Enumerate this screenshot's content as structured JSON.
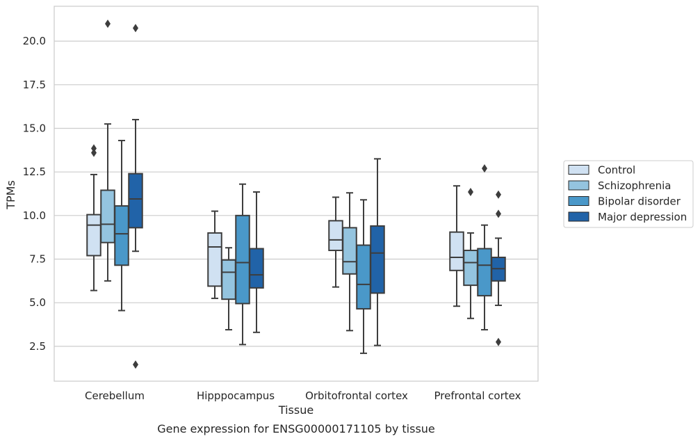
{
  "chart_data": {
    "type": "box",
    "title": "Gene expression for ENSG00000171105 by tissue",
    "xlabel": "Tissue",
    "ylabel": "TPMs",
    "ylim": [
      0.5,
      22.0
    ],
    "yticks": [
      "2.5",
      "5.0",
      "7.5",
      "10.0",
      "12.5",
      "15.0",
      "17.5",
      "20.0"
    ],
    "grid": "horizontal",
    "legend_position": "right",
    "categories": [
      "Cerebellum",
      "Hipppocampus",
      "Orbitofrontal cortex",
      "Prefrontal cortex"
    ],
    "series": [
      {
        "name": "Control",
        "color": "#d0e1f2",
        "boxes": [
          {
            "whisker_low": 5.7,
            "q1": 7.7,
            "median": 9.45,
            "q3": 10.05,
            "whisker_high": 12.35,
            "outliers": [
              13.6,
              13.85
            ]
          },
          {
            "whisker_low": 5.25,
            "q1": 5.95,
            "median": 8.2,
            "q3": 9.0,
            "whisker_high": 10.25,
            "outliers": []
          },
          {
            "whisker_low": 5.9,
            "q1": 8.0,
            "median": 8.6,
            "q3": 9.7,
            "whisker_high": 11.05,
            "outliers": []
          },
          {
            "whisker_low": 4.8,
            "q1": 6.85,
            "median": 7.6,
            "q3": 9.05,
            "whisker_high": 11.7,
            "outliers": []
          }
        ]
      },
      {
        "name": "Schizophrenia",
        "color": "#94c4df",
        "boxes": [
          {
            "whisker_low": 6.25,
            "q1": 8.45,
            "median": 9.5,
            "q3": 11.45,
            "whisker_high": 15.25,
            "outliers": [
              21.0
            ]
          },
          {
            "whisker_low": 3.45,
            "q1": 5.2,
            "median": 6.75,
            "q3": 7.45,
            "whisker_high": 8.15,
            "outliers": []
          },
          {
            "whisker_low": 3.4,
            "q1": 6.65,
            "median": 7.35,
            "q3": 9.3,
            "whisker_high": 11.3,
            "outliers": []
          },
          {
            "whisker_low": 4.1,
            "q1": 6.0,
            "median": 7.3,
            "q3": 8.0,
            "whisker_high": 9.0,
            "outliers": [
              11.35
            ]
          }
        ]
      },
      {
        "name": "Bipolar disorder",
        "color": "#4a98c9",
        "boxes": [
          {
            "whisker_low": 4.55,
            "q1": 7.15,
            "median": 8.95,
            "q3": 10.55,
            "whisker_high": 14.3,
            "outliers": []
          },
          {
            "whisker_low": 2.6,
            "q1": 4.95,
            "median": 7.3,
            "q3": 10.0,
            "whisker_high": 11.8,
            "outliers": []
          },
          {
            "whisker_low": 2.1,
            "q1": 4.65,
            "median": 6.05,
            "q3": 8.3,
            "whisker_high": 10.9,
            "outliers": []
          },
          {
            "whisker_low": 3.45,
            "q1": 5.4,
            "median": 7.15,
            "q3": 8.1,
            "whisker_high": 9.45,
            "outliers": [
              12.7
            ]
          }
        ]
      },
      {
        "name": "Major depression",
        "color": "#2163a8",
        "boxes": [
          {
            "whisker_low": 7.95,
            "q1": 9.3,
            "median": 10.95,
            "q3": 12.4,
            "whisker_high": 15.5,
            "outliers": [
              20.75,
              1.45
            ]
          },
          {
            "whisker_low": 3.3,
            "q1": 5.85,
            "median": 6.6,
            "q3": 8.1,
            "whisker_high": 11.35,
            "outliers": []
          },
          {
            "whisker_low": 2.55,
            "q1": 5.55,
            "median": 7.85,
            "q3": 9.4,
            "whisker_high": 13.25,
            "outliers": []
          },
          {
            "whisker_low": 4.85,
            "q1": 6.25,
            "median": 6.95,
            "q3": 7.6,
            "whisker_high": 8.7,
            "outliers": [
              11.2,
              10.1,
              2.75
            ]
          }
        ]
      }
    ]
  }
}
